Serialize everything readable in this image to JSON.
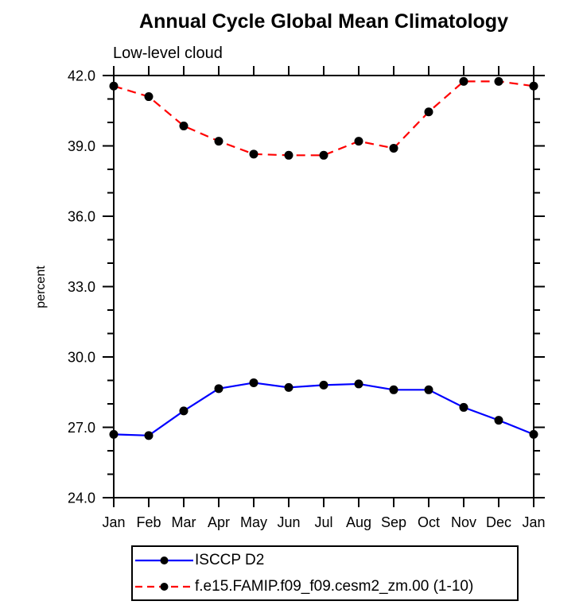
{
  "window": {
    "background": "#ffffff"
  },
  "chart_data": {
    "type": "line",
    "title": "Annual Cycle Global Mean Climatology",
    "subtitle": "Low-level cloud",
    "ylabel": "percent",
    "xlabel": "",
    "categories": [
      "Jan",
      "Feb",
      "Mar",
      "Apr",
      "May",
      "Jun",
      "Jul",
      "Aug",
      "Sep",
      "Oct",
      "Nov",
      "Dec",
      "Jan"
    ],
    "ylim": [
      24.0,
      42.0
    ],
    "ytick_values": [
      24,
      27,
      30,
      33,
      36,
      39,
      42
    ],
    "ytick_labels": [
      "24.0",
      "27.0",
      "30.0",
      "33.0",
      "36.0",
      "39.0",
      "42.0"
    ],
    "ytick_minor_step": 1.0,
    "grid": false,
    "legend_position": "bottom-left",
    "axis_color": "#000000",
    "series": [
      {
        "name": "ISCCP D2",
        "color": "#0000ff",
        "line_style": "solid",
        "marker": "filled-circle",
        "marker_color": "#000000",
        "values": [
          26.7,
          26.65,
          27.7,
          28.65,
          28.9,
          28.7,
          28.8,
          28.85,
          28.6,
          28.6,
          27.85,
          27.3,
          26.7
        ]
      },
      {
        "name": "f.e15.FAMIP.f09_f09.cesm2_zm.00 (1-10)",
        "color": "#ff0000",
        "line_style": "dashed",
        "marker": "filled-circle",
        "marker_color": "#000000",
        "values": [
          41.55,
          41.1,
          39.85,
          39.2,
          38.65,
          38.6,
          38.6,
          39.2,
          38.9,
          40.45,
          41.75,
          41.75,
          41.55
        ]
      }
    ]
  }
}
